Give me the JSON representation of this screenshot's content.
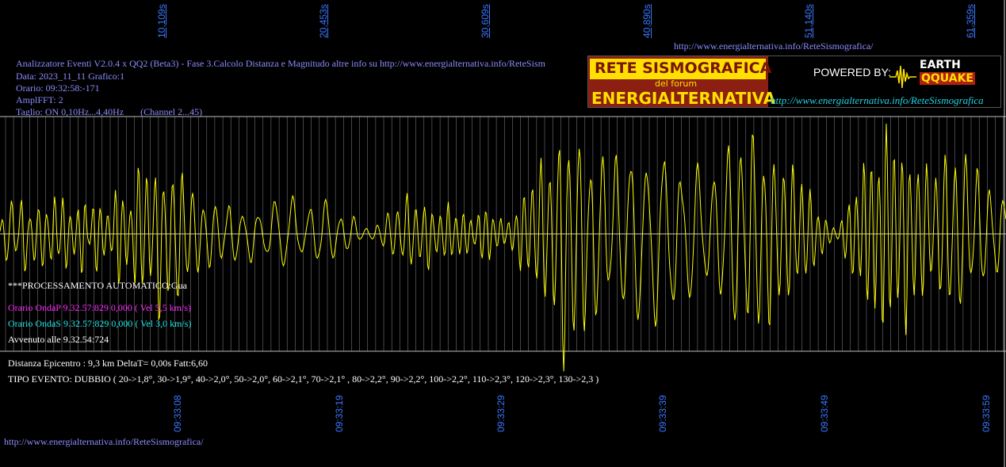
{
  "header": {
    "line1": "Analizzatore Eventi V2.0.4 x QQ2 (Beta3) - Fase 3.Calcolo Distanza e Magnitudo altre info su http://www.energialternativa.info/ReteSism",
    "line2": "Data: 2023_11_11 Grafico:1",
    "line3": "Orario: 09:32:58:-171",
    "line4": "AmplFFT: 2",
    "line5": "Taglio: ON 0,10Hz...4,40Hz       (Channel 2...45)"
  },
  "top_url": "http://www.energialternativa.info/ReteSismografica/",
  "bottom_url": "http://www.energialternativa.info/ReteSismografica/",
  "banner": {
    "title": "RETE SISMOGRAFICA",
    "subtitle": "del forum",
    "name": "ENERGIALTERNATIVA",
    "powered": "POWERED BY:",
    "eq_top": "EARTH",
    "eq_bottom": "QQUAKE",
    "url": "http://www.energialternativa.info/ReteSismografica",
    "colors": {
      "red": "#8b1f12",
      "yellow": "#ffe000",
      "cyan": "#1fd3e6"
    }
  },
  "processing": {
    "auto": "***PROCESSAMENTO AUTOMATICO:Gua",
    "ondaP": "Orario OndaP 9.32.57:829  0,000 ( Vel 5,5 km/s)",
    "ondaS": "Orario OndaS 9.32.57:829  0,000 ( Vel 3,0 km/s)",
    "avvenuto": "Avvenuto alle 9.32.54:724",
    "distanza": "Distanza Epicentro : 9,3 km DeltaT= 0,00s  Fatt:6,60",
    "tipo": "TIPO EVENTO: DUBBIO ( 20->1,8°, 30->1,9°, 40->2,0°, 50->2,0°, 60->2,1°, 70->2,1° , 80->2,2°, 90->2,2°, 100->2,2°, 110->2,3°, 120->2,3°, 130->2,3 )"
  },
  "chart_data": {
    "type": "line",
    "x_top_ticks": [
      "10,109s",
      "20,453s",
      "30,609s",
      "40,890s",
      "51,140s",
      "61,359s"
    ],
    "x_bottom_ticks": [
      "09:33:08",
      "09:33:19",
      "09:33:29",
      "09:33:39",
      "09:33:49",
      "09:33:59"
    ],
    "grid": true,
    "colors": {
      "trace": "#ffff00",
      "grid": "#8a8a8a",
      "tick_text": "#3a78ff",
      "axis_line": "#c8c8c8"
    },
    "trace_color_name": "yellow",
    "series": [
      {
        "values": [
          0.05,
          0.3,
          -0.4,
          0.2,
          0.45,
          -0.2,
          -0.35,
          0.35,
          0.2,
          -0.5,
          0.25,
          0.4,
          -0.3,
          -0.2,
          0.5,
          0.1,
          -0.45,
          0.3,
          0.2,
          -0.3,
          0.55,
          -0.4,
          0.3,
          0.6,
          -0.65,
          0.7,
          -0.5,
          0.85,
          -0.6,
          0.75,
          -0.55,
          0.8,
          -0.45,
          0.5,
          -0.3,
          0.4,
          -0.35,
          0.3,
          -0.25,
          0.35,
          -0.3,
          0.2,
          -0.25,
          0.3,
          -0.2,
          0.25,
          -0.3,
          0.35,
          -0.4,
          0.3,
          -0.35,
          0.25,
          -0.2,
          0.3,
          -0.35,
          0.4,
          -0.3,
          0.2,
          -0.25,
          0.15,
          -0.2,
          0.1,
          -0.05,
          0.05,
          -0.1,
          0.15,
          -0.2,
          0.3,
          -0.25,
          0.35,
          -0.4,
          0.3,
          -0.3,
          0.35,
          -0.25,
          0.2,
          -0.3,
          0.3,
          -0.2,
          0.25,
          -0.15,
          0.2,
          -0.25,
          0.3,
          -0.2,
          0.15,
          -0.1,
          0.2,
          -0.3,
          0.4,
          -0.5,
          0.6,
          -0.7,
          0.75,
          -0.8,
          0.95,
          -1.4,
          1.2,
          -0.9,
          1.1,
          -0.8,
          0.9,
          -0.7,
          0.95,
          -0.6,
          0.8,
          -0.75,
          1.0,
          -0.85,
          0.9,
          -0.7,
          0.8,
          -0.9,
          1.0,
          -0.75,
          0.85,
          -0.6,
          0.7,
          -0.8,
          0.6,
          -0.5,
          0.55,
          -0.7,
          0.85,
          -0.9,
          1.05,
          -0.95,
          0.9,
          -1.1,
          1.05,
          -0.85,
          0.9,
          -0.75,
          0.8,
          -0.65,
          0.7,
          -0.6,
          0.5,
          -0.4,
          0.3,
          -0.2,
          0.1,
          0.05,
          -0.15,
          0.3,
          -0.45,
          0.6,
          -0.7,
          0.8,
          -0.9,
          1.0,
          -1.05,
          0.95,
          -0.85,
          0.9,
          -0.8,
          0.75,
          -0.7,
          0.6,
          -0.65,
          0.7,
          -0.8,
          0.9,
          -0.75,
          0.85,
          -0.6,
          0.7,
          -0.5,
          0.55,
          -0.4,
          0.45,
          -0.35
        ]
      }
    ],
    "ylim": [
      -1.5,
      1.5
    ]
  }
}
